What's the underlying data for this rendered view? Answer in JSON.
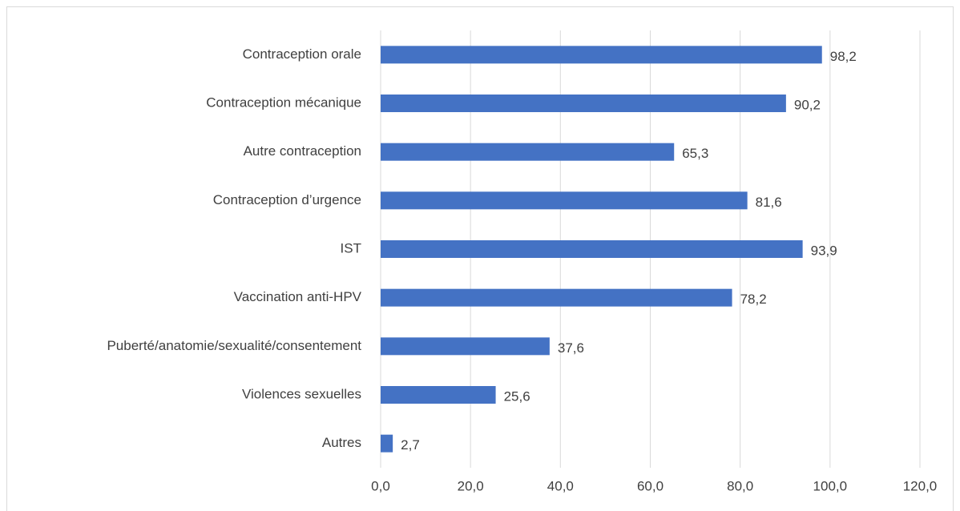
{
  "chart_data": {
    "type": "bar",
    "orientation": "horizontal",
    "categories": [
      "Contraception orale",
      "Contraception mécanique",
      "Autre contraception",
      "Contraception d’urgence",
      "IST",
      "Vaccination anti-HPV",
      "Puberté/anatomie/sexualité/consentement",
      "Violences sexuelles",
      "Autres"
    ],
    "values": [
      98.2,
      90.2,
      65.3,
      81.6,
      93.9,
      78.2,
      37.6,
      25.6,
      2.7
    ],
    "value_labels": [
      "98,2",
      "90,2",
      "65,3",
      "81,6",
      "93,9",
      "78,2",
      "37,6",
      "25,6",
      "2,7"
    ],
    "color": "#4472c4",
    "xlim": [
      0,
      120
    ],
    "xticks": [
      {
        "value": 0,
        "label": "0,0"
      },
      {
        "value": 20,
        "label": "20,0"
      },
      {
        "value": 40,
        "label": "40,0"
      },
      {
        "value": 60,
        "label": "60,0"
      },
      {
        "value": 80,
        "label": "80,0"
      },
      {
        "value": 100,
        "label": "100,0"
      },
      {
        "value": 120,
        "label": "120,0"
      }
    ],
    "grid": true
  }
}
